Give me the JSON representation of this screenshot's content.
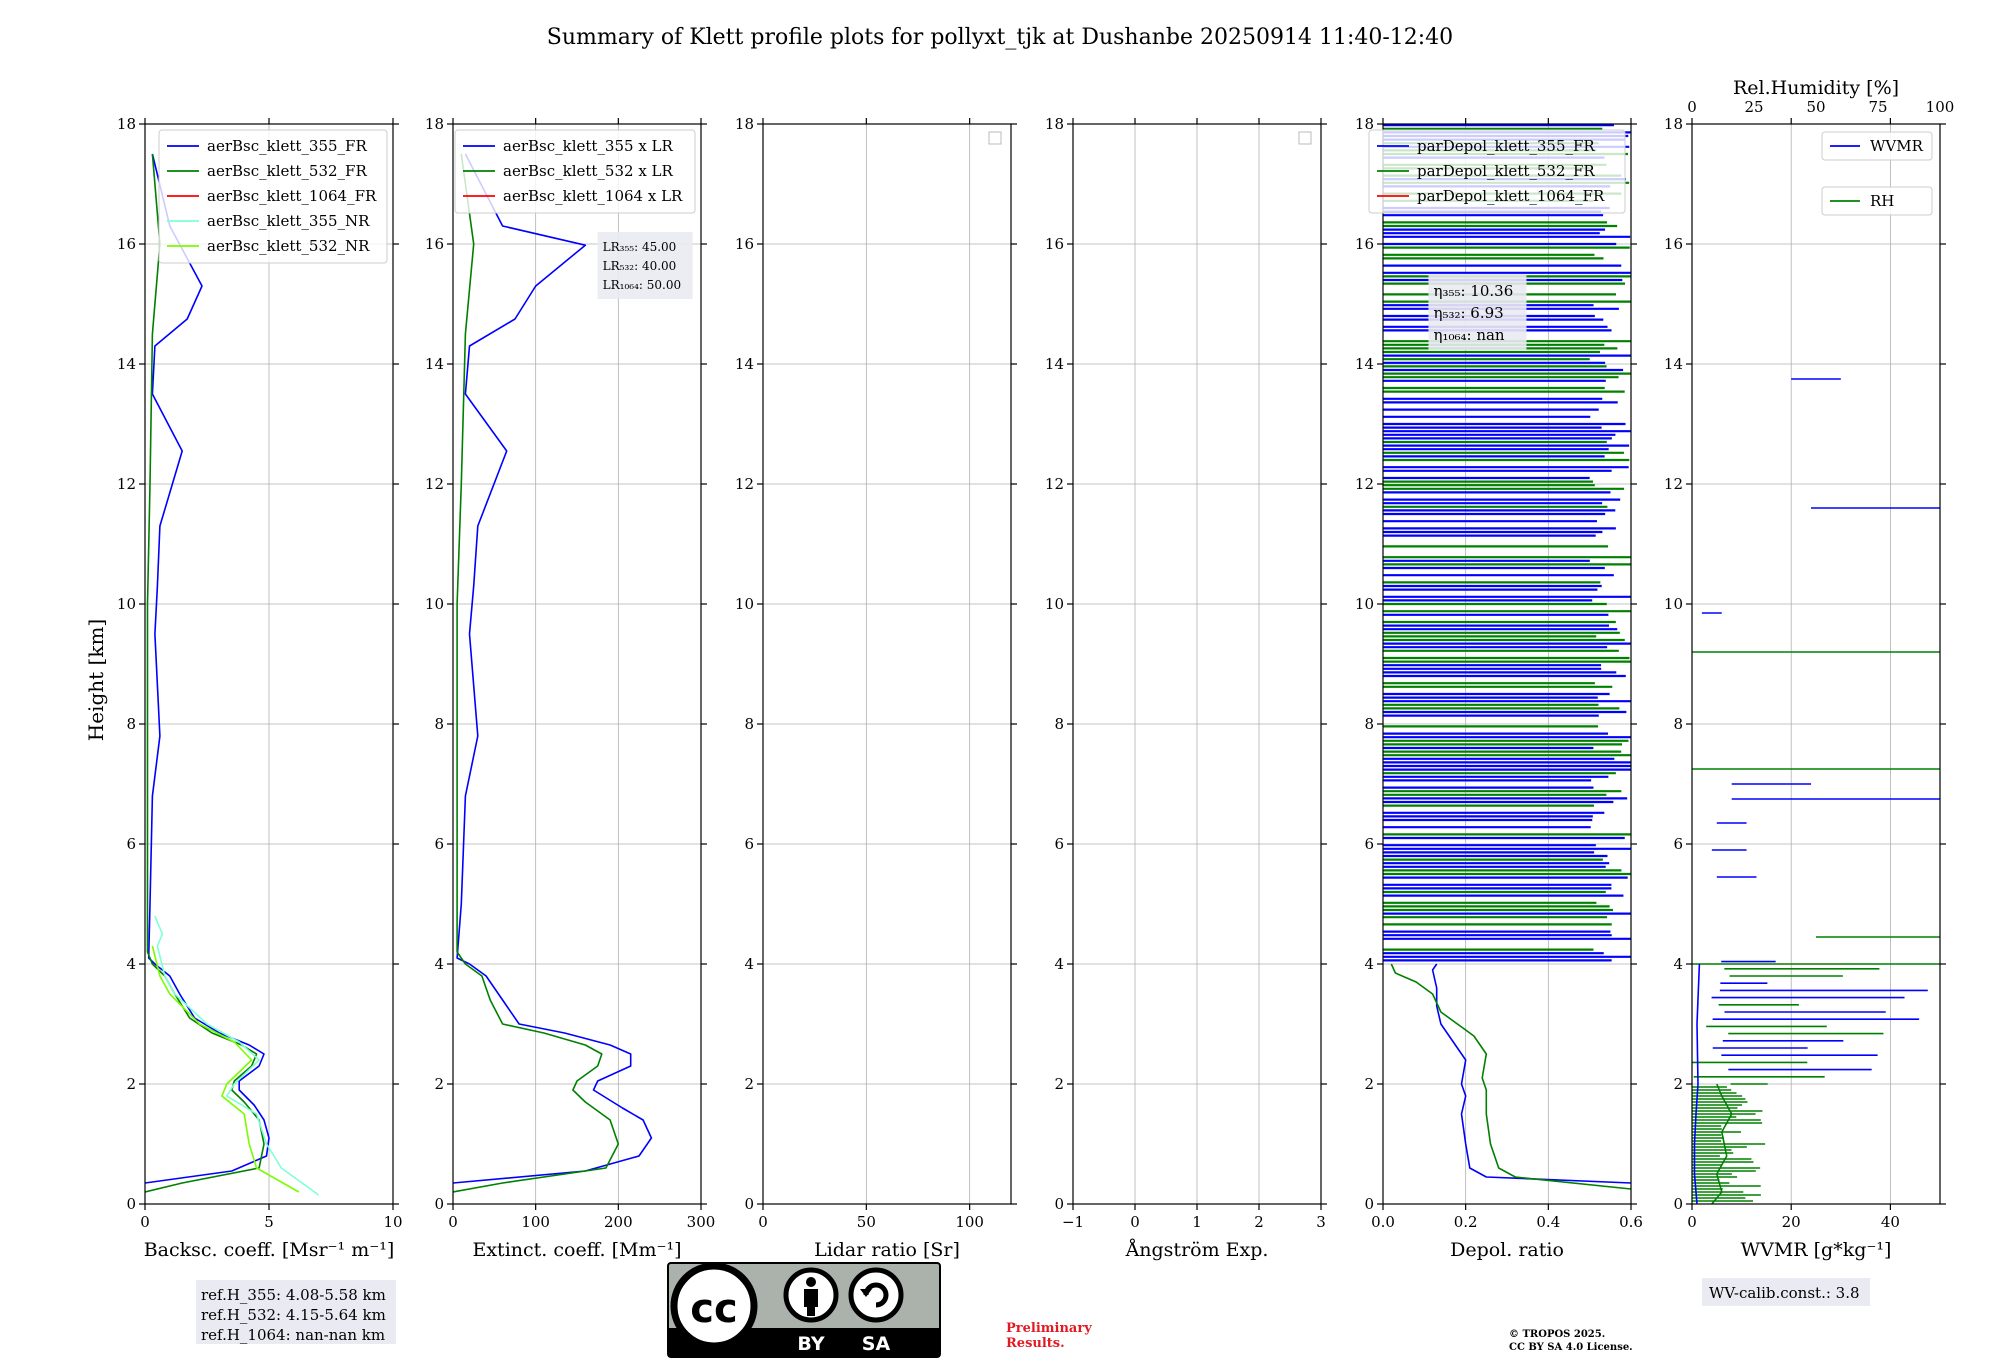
{
  "title": "Summary of Klett profile plots for pollyxt_tjk at Dushanbe 20250914 11:40-12:40",
  "ylabel": "Height [km]",
  "colors": {
    "c355": "#0000ff",
    "c532": "#008000",
    "c1064": "#ff0000",
    "c355nr": "#7fffd4",
    "c532nr": "#7cfc00",
    "grid": "#b0b0b0",
    "boxbg": "#eaeaf2"
  },
  "chart_data": [
    {
      "type": "line",
      "xlabel": "Backsc. coeff. [Msr⁻¹ m⁻¹]",
      "xlim": [
        0,
        10
      ],
      "xticks": [
        "0",
        "5",
        "10"
      ],
      "ylim": [
        0,
        18
      ],
      "yticks": [
        "0",
        "2",
        "4",
        "6",
        "8",
        "10",
        "12",
        "14",
        "16",
        "18"
      ],
      "grid": true,
      "legend": {
        "placement": "upper-right",
        "entries": [
          "aerBsc_klett_355_FR",
          "aerBsc_klett_532_FR",
          "aerBsc_klett_1064_FR",
          "aerBsc_klett_355_NR",
          "aerBsc_klett_532_NR"
        ]
      },
      "series": [
        {
          "name": "aerBsc_klett_355_FR",
          "color_key": "c355",
          "points": [
            [
              0,
              0.35
            ],
            [
              3.5,
              0.55
            ],
            [
              4.9,
              0.8
            ],
            [
              5.0,
              1.1
            ],
            [
              4.8,
              1.4
            ],
            [
              4.4,
              1.65
            ],
            [
              3.8,
              1.9
            ],
            [
              3.8,
              2.05
            ],
            [
              4.6,
              2.3
            ],
            [
              4.8,
              2.5
            ],
            [
              4.2,
              2.65
            ],
            [
              3.0,
              2.85
            ],
            [
              2.0,
              3.1
            ],
            [
              1.4,
              3.5
            ],
            [
              1.0,
              3.8
            ],
            [
              0.4,
              4.0
            ],
            [
              0.15,
              4.1
            ],
            [
              0.2,
              5.0
            ],
            [
              0.3,
              6.8
            ],
            [
              0.6,
              7.8
            ],
            [
              0.4,
              9.5
            ],
            [
              0.5,
              10.3
            ],
            [
              0.6,
              11.3
            ],
            [
              1.5,
              12.55
            ],
            [
              0.3,
              13.5
            ],
            [
              0.4,
              14.3
            ],
            [
              1.7,
              14.75
            ],
            [
              2.3,
              15.3
            ],
            [
              1.0,
              16.3
            ],
            [
              0.3,
              17.5
            ]
          ]
        },
        {
          "name": "aerBsc_klett_532_FR",
          "color_key": "c532",
          "points": [
            [
              0,
              0.2
            ],
            [
              1.5,
              0.35
            ],
            [
              4.6,
              0.6
            ],
            [
              4.8,
              1.0
            ],
            [
              4.6,
              1.4
            ],
            [
              4.0,
              1.7
            ],
            [
              3.5,
              1.9
            ],
            [
              3.6,
              2.05
            ],
            [
              4.3,
              2.3
            ],
            [
              4.5,
              2.5
            ],
            [
              3.9,
              2.65
            ],
            [
              2.7,
              2.85
            ],
            [
              1.8,
              3.1
            ],
            [
              1.2,
              3.5
            ],
            [
              0.8,
              3.8
            ],
            [
              0.3,
              4.0
            ],
            [
              0.1,
              4.2
            ],
            [
              0.1,
              6.0
            ],
            [
              0.1,
              10.0
            ],
            [
              0.2,
              12.0
            ],
            [
              0.3,
              14.5
            ],
            [
              0.6,
              16.0
            ],
            [
              0.3,
              17.5
            ]
          ]
        },
        {
          "name": "aerBsc_klett_355_NR",
          "color_key": "c355nr",
          "points": [
            [
              7.0,
              0.15
            ],
            [
              5.5,
              0.6
            ],
            [
              4.9,
              1.0
            ],
            [
              4.5,
              1.5
            ],
            [
              3.3,
              1.8
            ],
            [
              3.6,
              2.0
            ],
            [
              4.6,
              2.4
            ],
            [
              3.8,
              2.7
            ],
            [
              2.5,
              3.0
            ],
            [
              1.2,
              3.5
            ],
            [
              0.8,
              3.8
            ],
            [
              0.5,
              4.3
            ],
            [
              0.7,
              4.5
            ],
            [
              0.4,
              4.8
            ]
          ]
        },
        {
          "name": "aerBsc_klett_532_NR",
          "color_key": "c532nr",
          "points": [
            [
              6.2,
              0.2
            ],
            [
              4.5,
              0.6
            ],
            [
              4.2,
              1.0
            ],
            [
              4.0,
              1.5
            ],
            [
              3.1,
              1.8
            ],
            [
              3.3,
              2.0
            ],
            [
              4.3,
              2.4
            ],
            [
              3.6,
              2.7
            ],
            [
              2.2,
              3.0
            ],
            [
              1.0,
              3.5
            ],
            [
              0.6,
              3.8
            ],
            [
              0.3,
              4.3
            ]
          ]
        }
      ]
    },
    {
      "type": "line",
      "xlabel": "Extinct. coeff. [Mm⁻¹]",
      "xlim": [
        0,
        300
      ],
      "xticks": [
        "0",
        "100",
        "200",
        "300"
      ],
      "ylim": [
        0,
        18
      ],
      "yticks": [
        "0",
        "2",
        "4",
        "6",
        "8",
        "10",
        "12",
        "14",
        "16",
        "18"
      ],
      "grid": true,
      "legend": {
        "placement": "upper-right",
        "entries": [
          "aerBsc_klett_355 x LR",
          "aerBsc_klett_532 x LR",
          "aerBsc_klett_1064 x LR"
        ]
      },
      "annotation": [
        "LR₃₅₅: 45.00",
        "LR₅₃₂: 40.00",
        "LR₁₀₆₄: 50.00"
      ],
      "series": [
        {
          "name": "aerBsc_klett_355 x LR",
          "color_key": "c355",
          "points": [
            [
              0,
              0.35
            ],
            [
              160,
              0.55
            ],
            [
              225,
              0.8
            ],
            [
              240,
              1.1
            ],
            [
              230,
              1.4
            ],
            [
              205,
              1.6
            ],
            [
              170,
              1.9
            ],
            [
              175,
              2.05
            ],
            [
              215,
              2.3
            ],
            [
              215,
              2.5
            ],
            [
              190,
              2.65
            ],
            [
              135,
              2.85
            ],
            [
              80,
              3.0
            ],
            [
              60,
              3.4
            ],
            [
              40,
              3.8
            ],
            [
              20,
              4.0
            ],
            [
              5,
              4.1
            ],
            [
              10,
              5.0
            ],
            [
              15,
              6.8
            ],
            [
              30,
              7.8
            ],
            [
              20,
              9.5
            ],
            [
              25,
              10.3
            ],
            [
              30,
              11.3
            ],
            [
              65,
              12.55
            ],
            [
              15,
              13.5
            ],
            [
              20,
              14.3
            ],
            [
              75,
              14.75
            ],
            [
              100,
              15.3
            ],
            [
              160,
              15.98
            ],
            [
              60,
              16.3
            ],
            [
              15,
              17.5
            ]
          ]
        },
        {
          "name": "aerBsc_klett_532 x LR",
          "color_key": "c532",
          "points": [
            [
              0,
              0.2
            ],
            [
              60,
              0.35
            ],
            [
              185,
              0.6
            ],
            [
              200,
              1.0
            ],
            [
              190,
              1.4
            ],
            [
              160,
              1.7
            ],
            [
              145,
              1.9
            ],
            [
              150,
              2.05
            ],
            [
              175,
              2.3
            ],
            [
              180,
              2.5
            ],
            [
              160,
              2.65
            ],
            [
              110,
              2.85
            ],
            [
              60,
              3.0
            ],
            [
              45,
              3.4
            ],
            [
              35,
              3.8
            ],
            [
              15,
              4.0
            ],
            [
              5,
              4.2
            ],
            [
              5,
              6.0
            ],
            [
              5,
              10.0
            ],
            [
              10,
              12.0
            ],
            [
              15,
              14.5
            ],
            [
              25,
              16.0
            ],
            [
              10,
              17.5
            ]
          ]
        }
      ]
    },
    {
      "type": "line",
      "xlabel": "Lidar ratio [Sr]",
      "xlim": [
        0,
        120
      ],
      "xticks": [
        "0",
        "50",
        "100"
      ],
      "ylim": [
        0,
        18
      ],
      "yticks": [
        "0",
        "2",
        "4",
        "6",
        "8",
        "10",
        "12",
        "14",
        "16",
        "18"
      ],
      "grid": true,
      "series": []
    },
    {
      "type": "line",
      "xlabel": "Ångström Exp.",
      "xlim": [
        -1,
        3
      ],
      "xticks": [
        "−1",
        "0",
        "1",
        "2",
        "3"
      ],
      "ylim": [
        0,
        18
      ],
      "yticks": [
        "0",
        "2",
        "4",
        "6",
        "8",
        "10",
        "12",
        "14",
        "16",
        "18"
      ],
      "grid": true,
      "series": []
    },
    {
      "type": "line",
      "xlabel": "Depol. ratio",
      "xlim": [
        0,
        0.6
      ],
      "xticks": [
        "0.0",
        "0.2",
        "0.4",
        "0.6"
      ],
      "ylim": [
        0,
        18
      ],
      "yticks": [
        "0",
        "2",
        "4",
        "6",
        "8",
        "10",
        "12",
        "14",
        "16",
        "18"
      ],
      "grid": true,
      "legend": {
        "placement": "upper-right",
        "entries": [
          "parDepol_klett_355_FR",
          "parDepol_klett_532_FR",
          "parDepol_klett_1064_FR"
        ]
      },
      "annotation": [
        "η₃₅₅: 10.36",
        "η₅₃₂: 6.93",
        "η₁₀₆₄: nan"
      ],
      "series": [
        {
          "name": "parDepol_klett_355_FR",
          "color_key": "c355",
          "points": [
            [
              0.6,
              0.35
            ],
            [
              0.25,
              0.45
            ],
            [
              0.21,
              0.6
            ],
            [
              0.2,
              1.0
            ],
            [
              0.19,
              1.5
            ],
            [
              0.2,
              1.8
            ],
            [
              0.19,
              2.0
            ],
            [
              0.2,
              2.4
            ],
            [
              0.17,
              2.7
            ],
            [
              0.14,
              3.0
            ],
            [
              0.13,
              3.3
            ],
            [
              0.13,
              3.6
            ],
            [
              0.12,
              3.9
            ],
            [
              0.13,
              4.0
            ]
          ]
        },
        {
          "name": "parDepol_klett_532_FR",
          "color_key": "c532",
          "points": [
            [
              0.6,
              0.25
            ],
            [
              0.32,
              0.45
            ],
            [
              0.28,
              0.6
            ],
            [
              0.26,
              1.0
            ],
            [
              0.25,
              1.5
            ],
            [
              0.25,
              1.9
            ],
            [
              0.24,
              2.1
            ],
            [
              0.25,
              2.5
            ],
            [
              0.22,
              2.8
            ],
            [
              0.18,
              3.0
            ],
            [
              0.14,
              3.2
            ],
            [
              0.12,
              3.5
            ],
            [
              0.08,
              3.7
            ],
            [
              0.03,
              3.85
            ],
            [
              0.02,
              4.0
            ]
          ]
        }
      ]
    },
    {
      "type": "line",
      "xlabel": "WVMR [g*kg⁻¹]",
      "xlim": [
        0,
        50
      ],
      "xticks": [
        "0",
        "20",
        "40"
      ],
      "x2label": "Rel.Humidity [%]",
      "x2lim": [
        0,
        100
      ],
      "x2ticks": [
        "0",
        "25",
        "50",
        "75",
        "100"
      ],
      "ylim": [
        0,
        18
      ],
      "yticks": [
        "0",
        "2",
        "4",
        "6",
        "8",
        "10",
        "12",
        "14",
        "16",
        "18"
      ],
      "grid": true,
      "legend": {
        "placement": "upper-right",
        "entries": [
          "WVMR",
          "RH"
        ]
      },
      "series": [
        {
          "name": "WVMR",
          "color_key": "c355",
          "points": [
            [
              1.0,
              0.0
            ],
            [
              0.5,
              0.5
            ],
            [
              0.5,
              1.0
            ],
            [
              0.8,
              1.5
            ],
            [
              1.2,
              2.0
            ],
            [
              1.0,
              3.0
            ],
            [
              1.5,
              4.0
            ]
          ]
        },
        {
          "name": "RH",
          "color_key": "c532",
          "points": [
            [
              4,
              0.0
            ],
            [
              6,
              0.2
            ],
            [
              5,
              0.5
            ],
            [
              7,
              0.8
            ],
            [
              6,
              1.2
            ],
            [
              8,
              1.5
            ],
            [
              6,
              1.8
            ],
            [
              5,
              2.0
            ]
          ]
        }
      ]
    }
  ],
  "ref_box": [
    "ref.H_355: 4.08-5.58 km",
    "ref.H_532: 4.15-5.64 km",
    "ref.H_1064: nan-nan km"
  ],
  "wv_box": "WV-calib.const.: 3.8",
  "license_badge": {
    "by": "BY",
    "sa": "SA"
  },
  "preliminary": [
    "Preliminary",
    "Results."
  ],
  "copyright": [
    "© TROPOS 2025.",
    "CC BY SA 4.0 License."
  ]
}
